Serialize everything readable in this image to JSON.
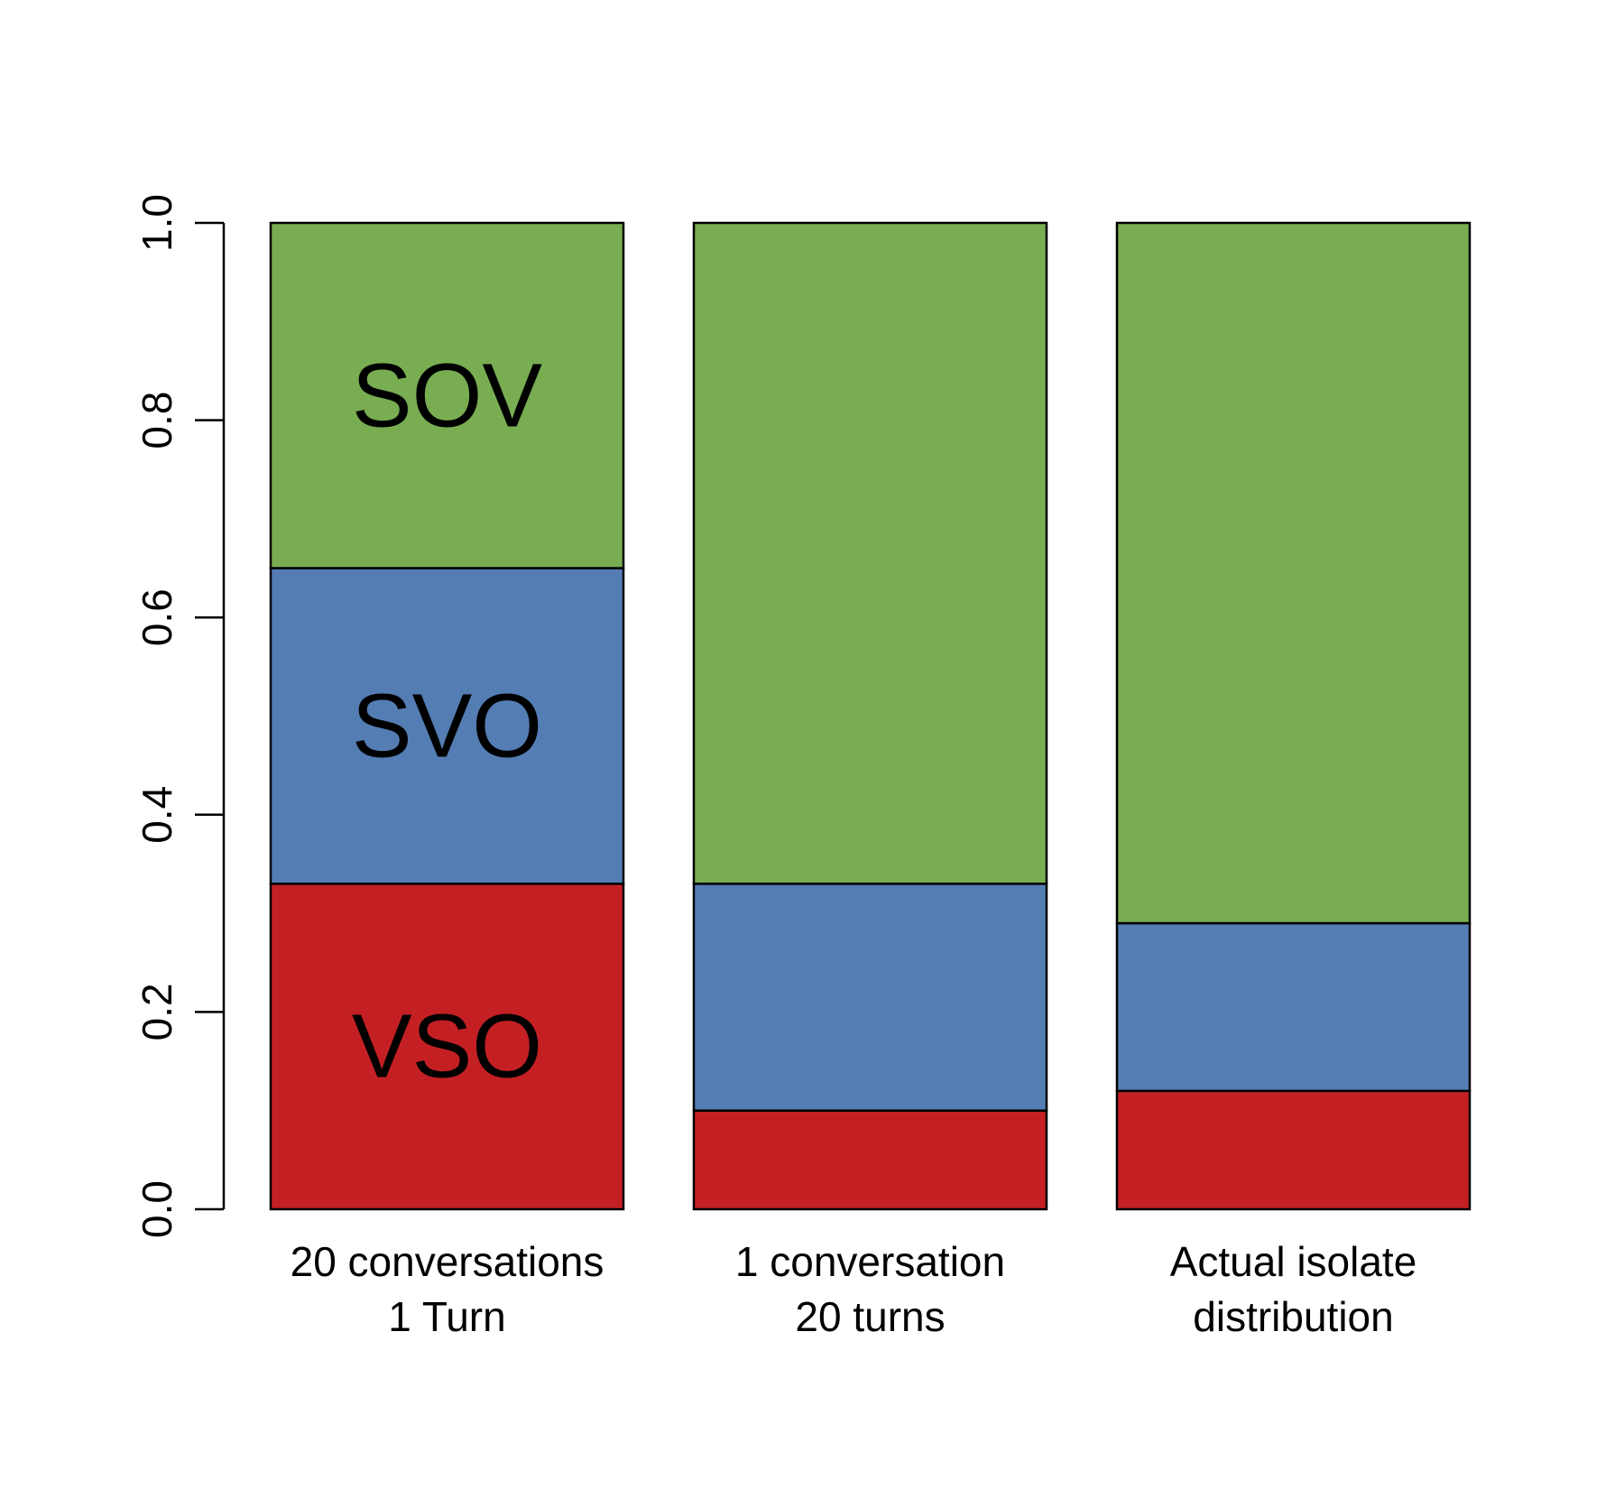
{
  "chart_data": {
    "type": "bar",
    "stacked": true,
    "categories": [
      [
        "20 conversations",
        "1 Turn"
      ],
      [
        "1 conversation",
        "20 turns"
      ],
      [
        "Actual isolate",
        "distribution"
      ]
    ],
    "series": [
      {
        "name": "VSO",
        "color": "#c42024",
        "values": [
          0.33,
          0.1,
          0.12
        ]
      },
      {
        "name": "SVO",
        "color": "#547db4",
        "values": [
          0.32,
          0.23,
          0.17
        ]
      },
      {
        "name": "SOV",
        "color": "#78ad52",
        "values": [
          0.35,
          0.67,
          0.71
        ]
      }
    ],
    "segment_labels_on_bar": 0,
    "ylim": [
      0,
      1
    ],
    "yticks": [
      0.0,
      0.2,
      0.4,
      0.6,
      0.8,
      1.0
    ],
    "ytick_labels": [
      "0.0",
      "0.2",
      "0.4",
      "0.6",
      "0.8",
      "1.0"
    ],
    "title": "",
    "xlabel": "",
    "ylabel": "",
    "grid": false,
    "legend": "none"
  }
}
